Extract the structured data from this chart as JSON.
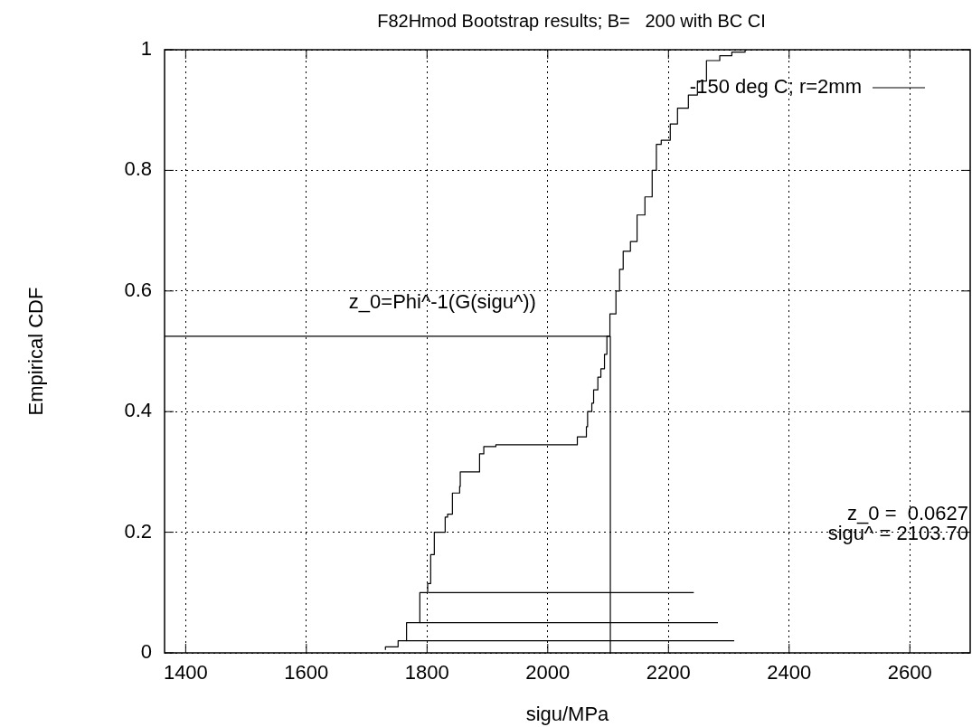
{
  "chart_data": {
    "type": "step",
    "title": "F82Hmod Bootstrap results; B=   200 with BC CI",
    "xlabel": "sigu/MPa",
    "ylabel": "Empirical CDF",
    "xlim": [
      1365,
      2700
    ],
    "xticks": [
      1400,
      1600,
      1800,
      2000,
      2200,
      2400,
      2600
    ],
    "ylim": [
      0,
      1
    ],
    "yticks": [
      0,
      0.2,
      0.4,
      0.6,
      0.8,
      1
    ],
    "grid": true,
    "legend": "top right",
    "line_style": "solid",
    "series": [
      {
        "name": "-150 deg C; r=2mm",
        "color": "#000000",
        "x": [
          1731,
          1752,
          1766,
          1788,
          1801,
          1806,
          1812,
          1830,
          1834,
          1842,
          1854,
          1855,
          1870,
          1887,
          1894,
          1914,
          1927,
          2049,
          2064,
          2066,
          2073,
          2076,
          2083,
          2088,
          2094,
          2098,
          2103,
          2113,
          2119,
          2125,
          2137,
          2148,
          2161,
          2173,
          2180,
          2188,
          2203,
          2215,
          2233,
          2248,
          2263,
          2285,
          2305,
          2327,
          2330
        ],
        "values": [
          0.005,
          0.01,
          0.02,
          0.05,
          0.1,
          0.115,
          0.163,
          0.2,
          0.225,
          0.23,
          0.265,
          0.276,
          0.3,
          0.3,
          0.33,
          0.342,
          0.345,
          0.345,
          0.358,
          0.375,
          0.4,
          0.414,
          0.436,
          0.457,
          0.471,
          0.495,
          0.525,
          0.562,
          0.6,
          0.636,
          0.666,
          0.682,
          0.726,
          0.756,
          0.8,
          0.843,
          0.85,
          0.877,
          0.903,
          0.925,
          0.948,
          0.982,
          0.99,
          0.996,
          1
        ]
      },
      {
        "type": "line",
        "color": "#000000",
        "x": [
          1802,
          2242
        ],
        "values": [
          0.1,
          0.1
        ]
      },
      {
        "type": "line",
        "color": "#000000",
        "x": [
          1788,
          2282
        ],
        "values": [
          0.05,
          0.05
        ]
      },
      {
        "type": "line",
        "color": "#000000",
        "x": [
          1766,
          2309
        ],
        "values": [
          0.02,
          0.02
        ]
      },
      {
        "type": "line",
        "color": "#000000",
        "x": [
          2103.7,
          2103.7
        ],
        "values": [
          0,
          0.525
        ]
      },
      {
        "type": "line",
        "color": "#000000",
        "x": [
          2103.7,
          1365
        ],
        "values": [
          0.525,
          0.525
        ]
      }
    ],
    "annotations": [
      "z_0=Phi^-1(G(sigu^))",
      "z_0 =  0.0627",
      "sigu^ = 2103.70"
    ]
  }
}
